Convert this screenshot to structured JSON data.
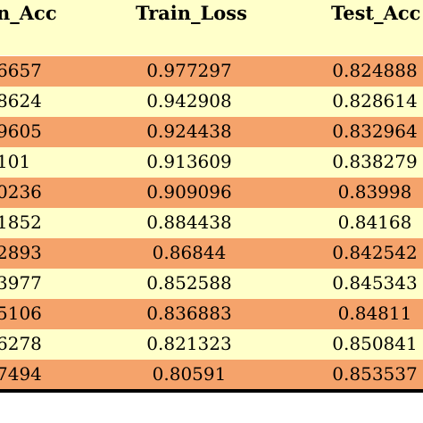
{
  "header": {
    "col1": "n_Acc",
    "col2": "Train_Loss",
    "col3": "Test_Acc"
  },
  "colors": {
    "header_bg": "#ffffca",
    "row_orange": "#f5a36b",
    "row_yellow": "#ffffca"
  },
  "rows": [
    {
      "c1": "6657",
      "c2": "0.977297",
      "c3": "0.824888",
      "shade": "orange"
    },
    {
      "c1": "8624",
      "c2": "0.942908",
      "c3": "0.828614",
      "shade": "yellow"
    },
    {
      "c1": "9605",
      "c2": "0.924438",
      "c3": "0.832964",
      "shade": "orange"
    },
    {
      "c1": "101",
      "c2": "0.913609",
      "c3": "0.838279",
      "shade": "yellow"
    },
    {
      "c1": "0236",
      "c2": "0.909096",
      "c3": "0.83998",
      "shade": "orange"
    },
    {
      "c1": "1852",
      "c2": "0.884438",
      "c3": "0.84168",
      "shade": "yellow"
    },
    {
      "c1": "2893",
      "c2": "0.86844",
      "c3": "0.842542",
      "shade": "orange"
    },
    {
      "c1": "3977",
      "c2": "0.852588",
      "c3": "0.845343",
      "shade": "yellow"
    },
    {
      "c1": "5106",
      "c2": "0.836883",
      "c3": "0.84811",
      "shade": "orange"
    },
    {
      "c1": "6278",
      "c2": "0.821323",
      "c3": "0.850841",
      "shade": "yellow"
    },
    {
      "c1": "7494",
      "c2": "0.80591",
      "c3": "0.853537",
      "shade": "orange"
    }
  ]
}
